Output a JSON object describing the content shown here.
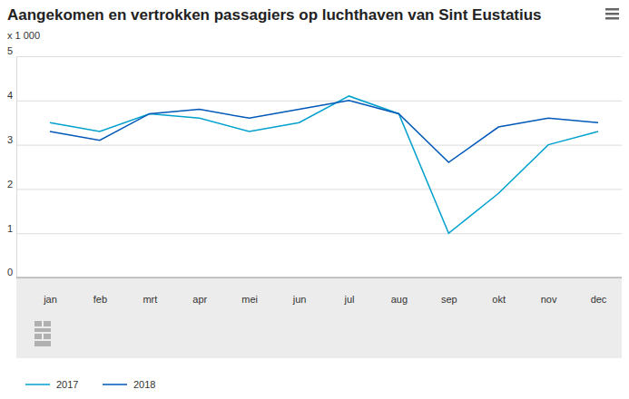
{
  "chart_data": {
    "type": "line",
    "title": "Aangekomen en vertrokken passagiers op luchthaven van Sint Eustatius",
    "subtitle": "x 1 000",
    "categories": [
      "jan",
      "feb",
      "mrt",
      "apr",
      "mei",
      "jun",
      "jul",
      "aug",
      "sep",
      "okt",
      "nov",
      "dec"
    ],
    "series": [
      {
        "name": "2017",
        "color": "#00a1cd",
        "values": [
          3.5,
          3.3,
          3.7,
          3.6,
          3.3,
          3.5,
          4.1,
          3.7,
          1.0,
          1.9,
          3.0,
          3.3
        ]
      },
      {
        "name": "2018",
        "color": "#0058b8",
        "values": [
          3.3,
          3.1,
          3.7,
          3.8,
          3.6,
          3.8,
          4.0,
          3.7,
          2.6,
          3.4,
          3.6,
          3.5
        ]
      }
    ],
    "ylim": [
      0,
      5
    ],
    "yticks": [
      0,
      1,
      2,
      3,
      4,
      5
    ],
    "grid": true,
    "legend": "bottom-left"
  }
}
